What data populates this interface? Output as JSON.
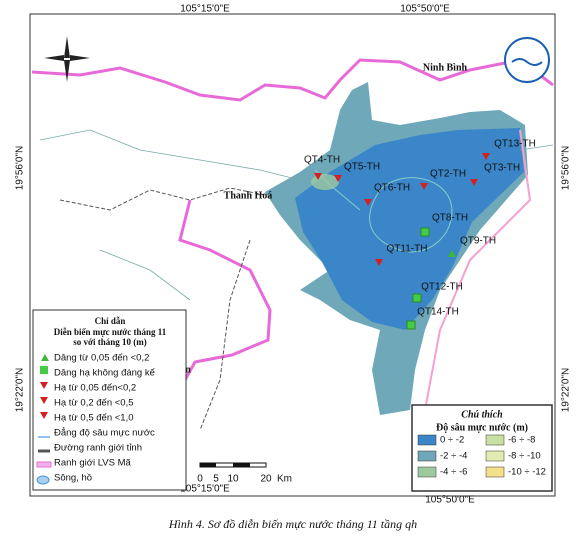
{
  "coordinates": {
    "top": [
      "105°15'0\"E",
      "105°50'0\"E"
    ],
    "bottom": [
      "105°15'0\"E",
      "105°50'0\"E"
    ],
    "left": [
      "19°56'0\"N",
      "19°22'0\"N"
    ],
    "right": [
      "19°56'0\"N",
      "19°22'0\"N"
    ]
  },
  "places": [
    "Ninh Bình",
    "Thanh Hoá",
    "An"
  ],
  "wells": [
    "QT13-TH",
    "QT4-TH",
    "QT5-TH",
    "QT2-TH",
    "QT3-TH",
    "QT6-TH",
    "QT8-TH",
    "QT9-TH",
    "QT11-TH",
    "QT12-TH",
    "QT14-TH"
  ],
  "legend": {
    "title": "Chỉ dẫn",
    "subtitle": [
      "Diễn biến mực nước tháng 11",
      "so với tháng 10 (m)"
    ],
    "items": [
      "Dâng từ 0,05 đến <0,2",
      "Dâng hạ không đáng kể",
      "Hạ từ 0,05 đến<0,2",
      "Hạ từ 0,2 đến <0,5",
      "Hạ từ 0,5 đến <1,0",
      "Đẳng độ sâu mực nước",
      "Đường ranh giới tỉnh",
      "Ranh giới LVS Mã",
      "Sông, hồ"
    ]
  },
  "depth_legend": {
    "title": "Chú thích",
    "subtitle": "Độ sâu mực nước (m)",
    "items": [
      "0 ÷ -2",
      "-2 ÷ -4",
      "-4 ÷ -6",
      "-6 ÷ -8",
      "-8 ÷ -10",
      "-10 ÷ -12"
    ]
  },
  "scale_bar": {
    "labels": [
      "0",
      "5",
      "10",
      "20"
    ],
    "unit": "Km"
  },
  "caption": "Hình 4. Sơ đồ diễn biến mực nước tháng 11 tầng qh"
}
